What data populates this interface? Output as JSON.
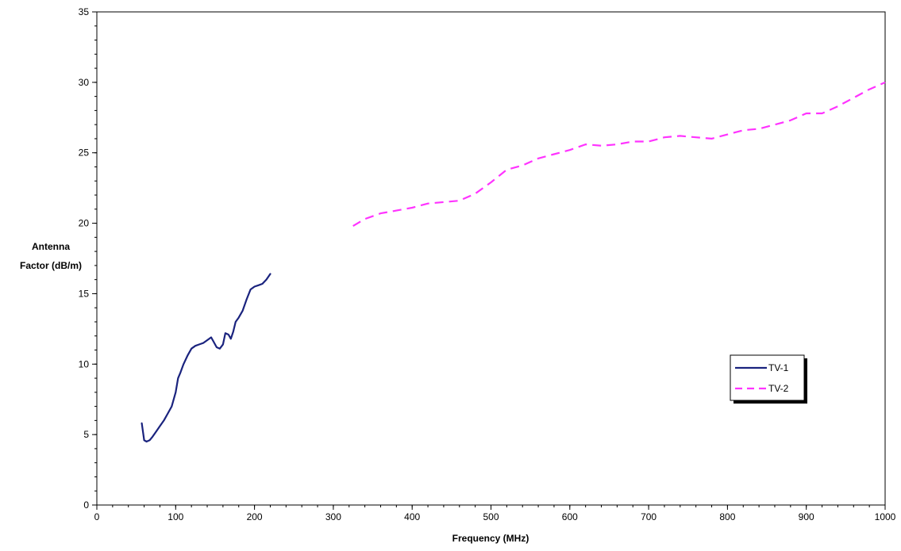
{
  "chart_data": {
    "type": "line",
    "title": "",
    "xlabel": "Frequency (MHz)",
    "ylabel_lines": [
      "Antenna",
      "Factor (dB/m)"
    ],
    "xlim": [
      0,
      1000
    ],
    "ylim": [
      0,
      35
    ],
    "xticks": [
      0,
      100,
      200,
      300,
      400,
      500,
      600,
      700,
      800,
      900,
      1000
    ],
    "yticks": [
      0,
      5,
      10,
      15,
      20,
      25,
      30,
      35
    ],
    "grid": true,
    "legend_position": "right",
    "series": [
      {
        "name": "TV-1",
        "color": "#1a237e",
        "style": "solid",
        "x": [
          57,
          60,
          63,
          67,
          70,
          75,
          80,
          85,
          90,
          95,
          100,
          103,
          106,
          110,
          115,
          120,
          125,
          130,
          135,
          140,
          145,
          148,
          152,
          156,
          160,
          163,
          167,
          170,
          173,
          176,
          180,
          185,
          190,
          195,
          200,
          205,
          210,
          215,
          220
        ],
        "y": [
          5.8,
          4.6,
          4.5,
          4.6,
          4.8,
          5.2,
          5.6,
          6.0,
          6.5,
          7.0,
          8.0,
          9.0,
          9.4,
          10.0,
          10.6,
          11.1,
          11.3,
          11.4,
          11.5,
          11.7,
          11.9,
          11.6,
          11.2,
          11.1,
          11.4,
          12.2,
          12.1,
          11.8,
          12.3,
          13.0,
          13.3,
          13.8,
          14.6,
          15.3,
          15.5,
          15.6,
          15.7,
          16.0,
          16.4
        ]
      },
      {
        "name": "TV-2",
        "color": "#ff33ff",
        "style": "dashed",
        "x": [
          325,
          340,
          360,
          380,
          400,
          420,
          440,
          460,
          480,
          500,
          520,
          540,
          560,
          580,
          600,
          620,
          640,
          660,
          680,
          700,
          720,
          740,
          760,
          780,
          800,
          820,
          840,
          860,
          880,
          900,
          920,
          940,
          960,
          980,
          1000
        ],
        "y": [
          19.8,
          20.3,
          20.7,
          20.9,
          21.1,
          21.4,
          21.5,
          21.6,
          22.1,
          22.9,
          23.8,
          24.1,
          24.6,
          24.9,
          25.2,
          25.6,
          25.5,
          25.6,
          25.8,
          25.8,
          26.1,
          26.2,
          26.1,
          26.0,
          26.3,
          26.6,
          26.7,
          27.0,
          27.3,
          27.8,
          27.8,
          28.3,
          28.9,
          29.5,
          30.0
        ]
      }
    ]
  }
}
